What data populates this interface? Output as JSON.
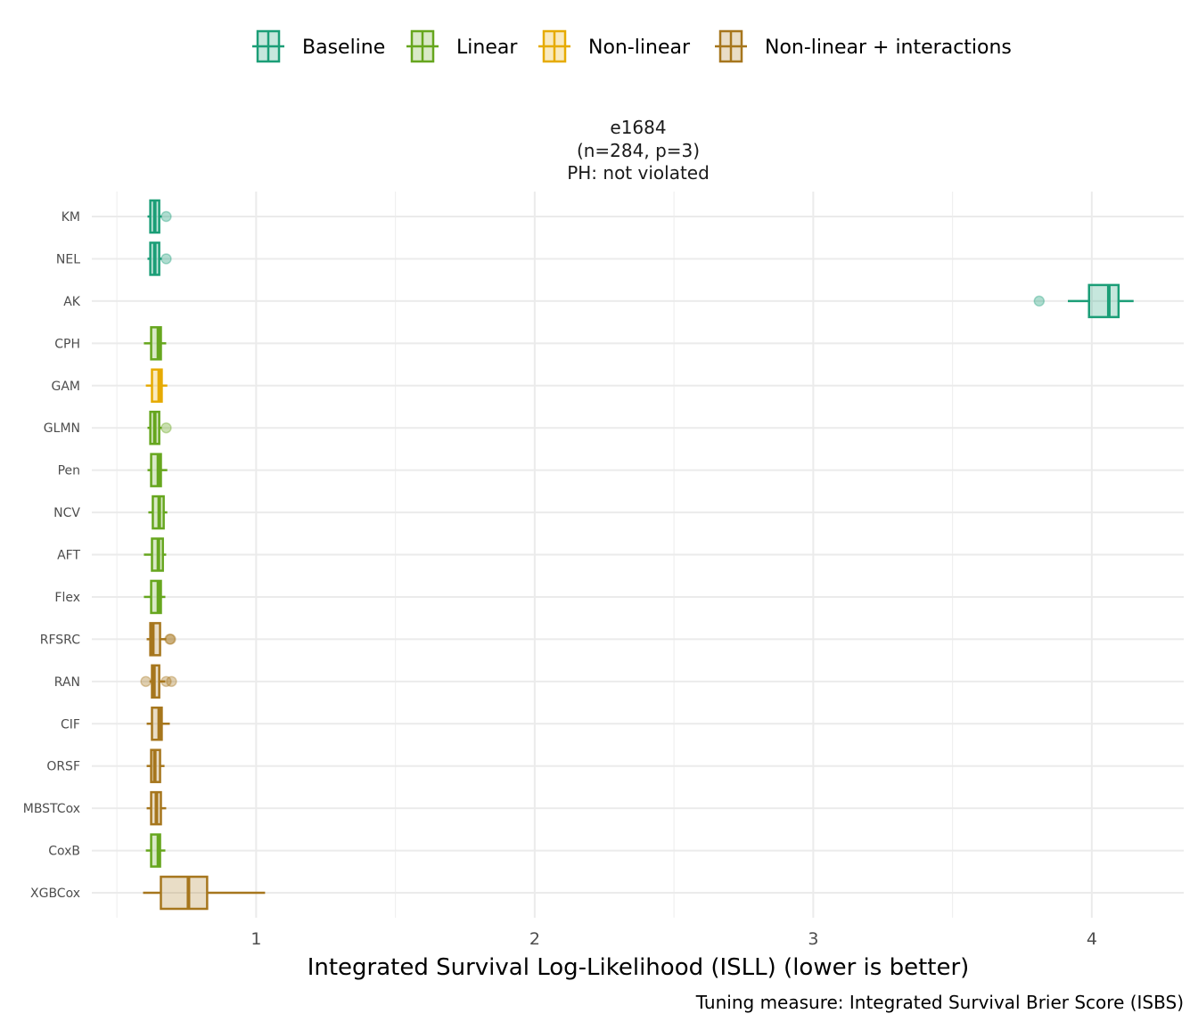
{
  "chart_data": {
    "type": "boxplot",
    "title_lines": [
      "e1684",
      "(n=284, p=3)",
      "PH: not violated"
    ],
    "xlabel": "Integrated Survival Log-Likelihood (ISLL) (lower is better)",
    "caption": "Tuning measure: Integrated Survival Brier Score (ISBS)",
    "xlim": [
      0.41,
      4.33
    ],
    "xticks": [
      1,
      2,
      3,
      4
    ],
    "xtick_labels": [
      "1",
      "2",
      "3",
      "4"
    ],
    "grid": true,
    "legend_position": "top",
    "legend": [
      {
        "name": "Baseline",
        "color": "#1b9e77"
      },
      {
        "name": "Linear",
        "color": "#66a61e"
      },
      {
        "name": "Non-linear",
        "color": "#e6ab02"
      },
      {
        "name": "Non-linear + interactions",
        "color": "#a6761d"
      }
    ],
    "categories": [
      "KM",
      "NEL",
      "AK",
      "CPH",
      "GAM",
      "GLMN",
      "Pen",
      "NCV",
      "AFT",
      "Flex",
      "RFSRC",
      "RAN",
      "CIF",
      "ORSF",
      "MBSTCox",
      "CoxB",
      "XGBCox"
    ],
    "boxes": [
      {
        "group": "Baseline",
        "min": 0.61,
        "q1": 0.62,
        "median": 0.636,
        "q3": 0.652,
        "max": 0.661,
        "outliers": [
          0.677
        ]
      },
      {
        "group": "Baseline",
        "min": 0.61,
        "q1": 0.62,
        "median": 0.636,
        "q3": 0.652,
        "max": 0.661,
        "outliers": [
          0.677
        ]
      },
      {
        "group": "Baseline",
        "min": 3.914,
        "q1": 3.99,
        "median": 4.061,
        "q3": 4.096,
        "max": 4.15,
        "outliers": [
          3.811
        ]
      },
      {
        "group": "Linear",
        "min": 0.597,
        "q1": 0.623,
        "median": 0.649,
        "q3": 0.658,
        "max": 0.677,
        "outliers": []
      },
      {
        "group": "Non-linear",
        "min": 0.604,
        "q1": 0.626,
        "median": 0.652,
        "q3": 0.661,
        "max": 0.681,
        "outliers": []
      },
      {
        "group": "Linear",
        "min": 0.61,
        "q1": 0.62,
        "median": 0.636,
        "q3": 0.652,
        "max": 0.661,
        "outliers": [
          0.677
        ]
      },
      {
        "group": "Linear",
        "min": 0.61,
        "q1": 0.623,
        "median": 0.649,
        "q3": 0.658,
        "max": 0.681,
        "outliers": []
      },
      {
        "group": "Linear",
        "min": 0.613,
        "q1": 0.629,
        "median": 0.652,
        "q3": 0.668,
        "max": 0.681,
        "outliers": []
      },
      {
        "group": "Linear",
        "min": 0.597,
        "q1": 0.626,
        "median": 0.649,
        "q3": 0.665,
        "max": 0.677,
        "outliers": []
      },
      {
        "group": "Linear",
        "min": 0.597,
        "q1": 0.623,
        "median": 0.649,
        "q3": 0.658,
        "max": 0.674,
        "outliers": []
      },
      {
        "group": "Non-linear + interactions",
        "min": 0.607,
        "q1": 0.62,
        "median": 0.629,
        "q3": 0.655,
        "max": 0.677,
        "outliers": [
          0.69,
          0.693
        ]
      },
      {
        "group": "Non-linear + interactions",
        "min": 0.617,
        "q1": 0.626,
        "median": 0.633,
        "q3": 0.652,
        "max": 0.674,
        "outliers": [
          0.604,
          0.677,
          0.696
        ]
      },
      {
        "group": "Non-linear + interactions",
        "min": 0.607,
        "q1": 0.626,
        "median": 0.652,
        "q3": 0.661,
        "max": 0.69,
        "outliers": []
      },
      {
        "group": "Non-linear + interactions",
        "min": 0.607,
        "q1": 0.623,
        "median": 0.636,
        "q3": 0.655,
        "max": 0.671,
        "outliers": []
      },
      {
        "group": "Non-linear + interactions",
        "min": 0.607,
        "q1": 0.623,
        "median": 0.642,
        "q3": 0.658,
        "max": 0.677,
        "outliers": []
      },
      {
        "group": "Linear",
        "min": 0.604,
        "q1": 0.623,
        "median": 0.649,
        "q3": 0.655,
        "max": 0.674,
        "outliers": []
      },
      {
        "group": "Non-linear + interactions",
        "min": 0.594,
        "q1": 0.658,
        "median": 0.757,
        "q3": 0.824,
        "max": 1.032,
        "outliers": []
      }
    ]
  }
}
